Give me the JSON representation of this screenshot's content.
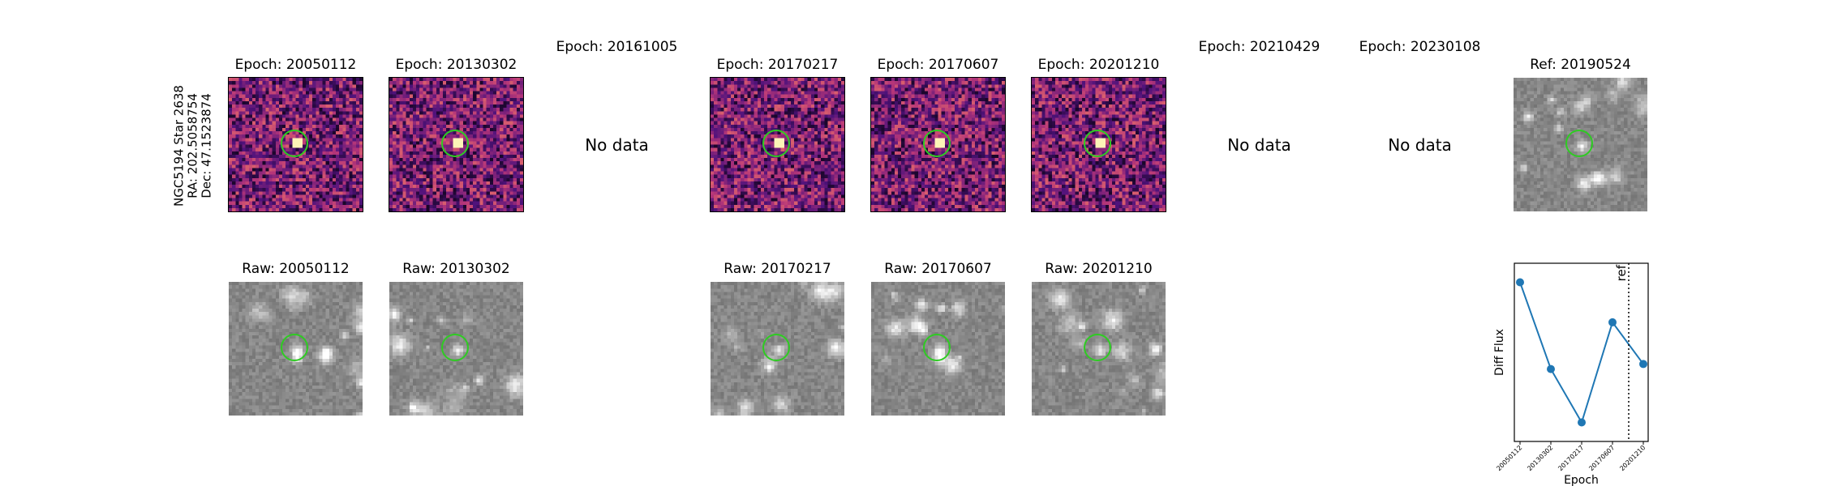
{
  "star_label": [
    "NGC5194 Star 2638",
    "RA: 202.5058754",
    "Dec: 47.1523874"
  ],
  "no_data_text": "No data",
  "epochs": [
    {
      "diff_title": "Epoch: 20050112",
      "raw_title": "Raw: 20050112",
      "has_data": true
    },
    {
      "diff_title": "Epoch: 20130302",
      "raw_title": "Raw: 20130302",
      "has_data": true
    },
    {
      "diff_title": "Epoch: 20161005",
      "raw_title": "",
      "has_data": false
    },
    {
      "diff_title": "Epoch: 20170217",
      "raw_title": "Raw: 20170217",
      "has_data": true
    },
    {
      "diff_title": "Epoch: 20170607",
      "raw_title": "Raw: 20170607",
      "has_data": true
    },
    {
      "diff_title": "Epoch: 20201210",
      "raw_title": "Raw: 20201210",
      "has_data": true
    },
    {
      "diff_title": "Epoch: 20210429",
      "raw_title": "",
      "has_data": false
    },
    {
      "diff_title": "Epoch: 20230108",
      "raw_title": "",
      "has_data": false
    }
  ],
  "reference": {
    "title": "Ref: 20190524"
  },
  "colors": {
    "circle": "#2ecc22",
    "series": "#1f77b4"
  },
  "chart_data": {
    "type": "line",
    "x": [
      "20050112",
      "20130302",
      "20170217",
      "20170607",
      "20201210"
    ],
    "series": [
      {
        "values": [
          0.92,
          0.4,
          0.08,
          0.68,
          0.43
        ]
      }
    ],
    "xlabel": "Epoch",
    "ylabel": "Diff Flux",
    "ylim": [
      0,
      1
    ],
    "grid": false,
    "annotations": [
      {
        "text": "ref",
        "x_after": "20170607",
        "style": "dotted-vertical-line"
      }
    ]
  }
}
